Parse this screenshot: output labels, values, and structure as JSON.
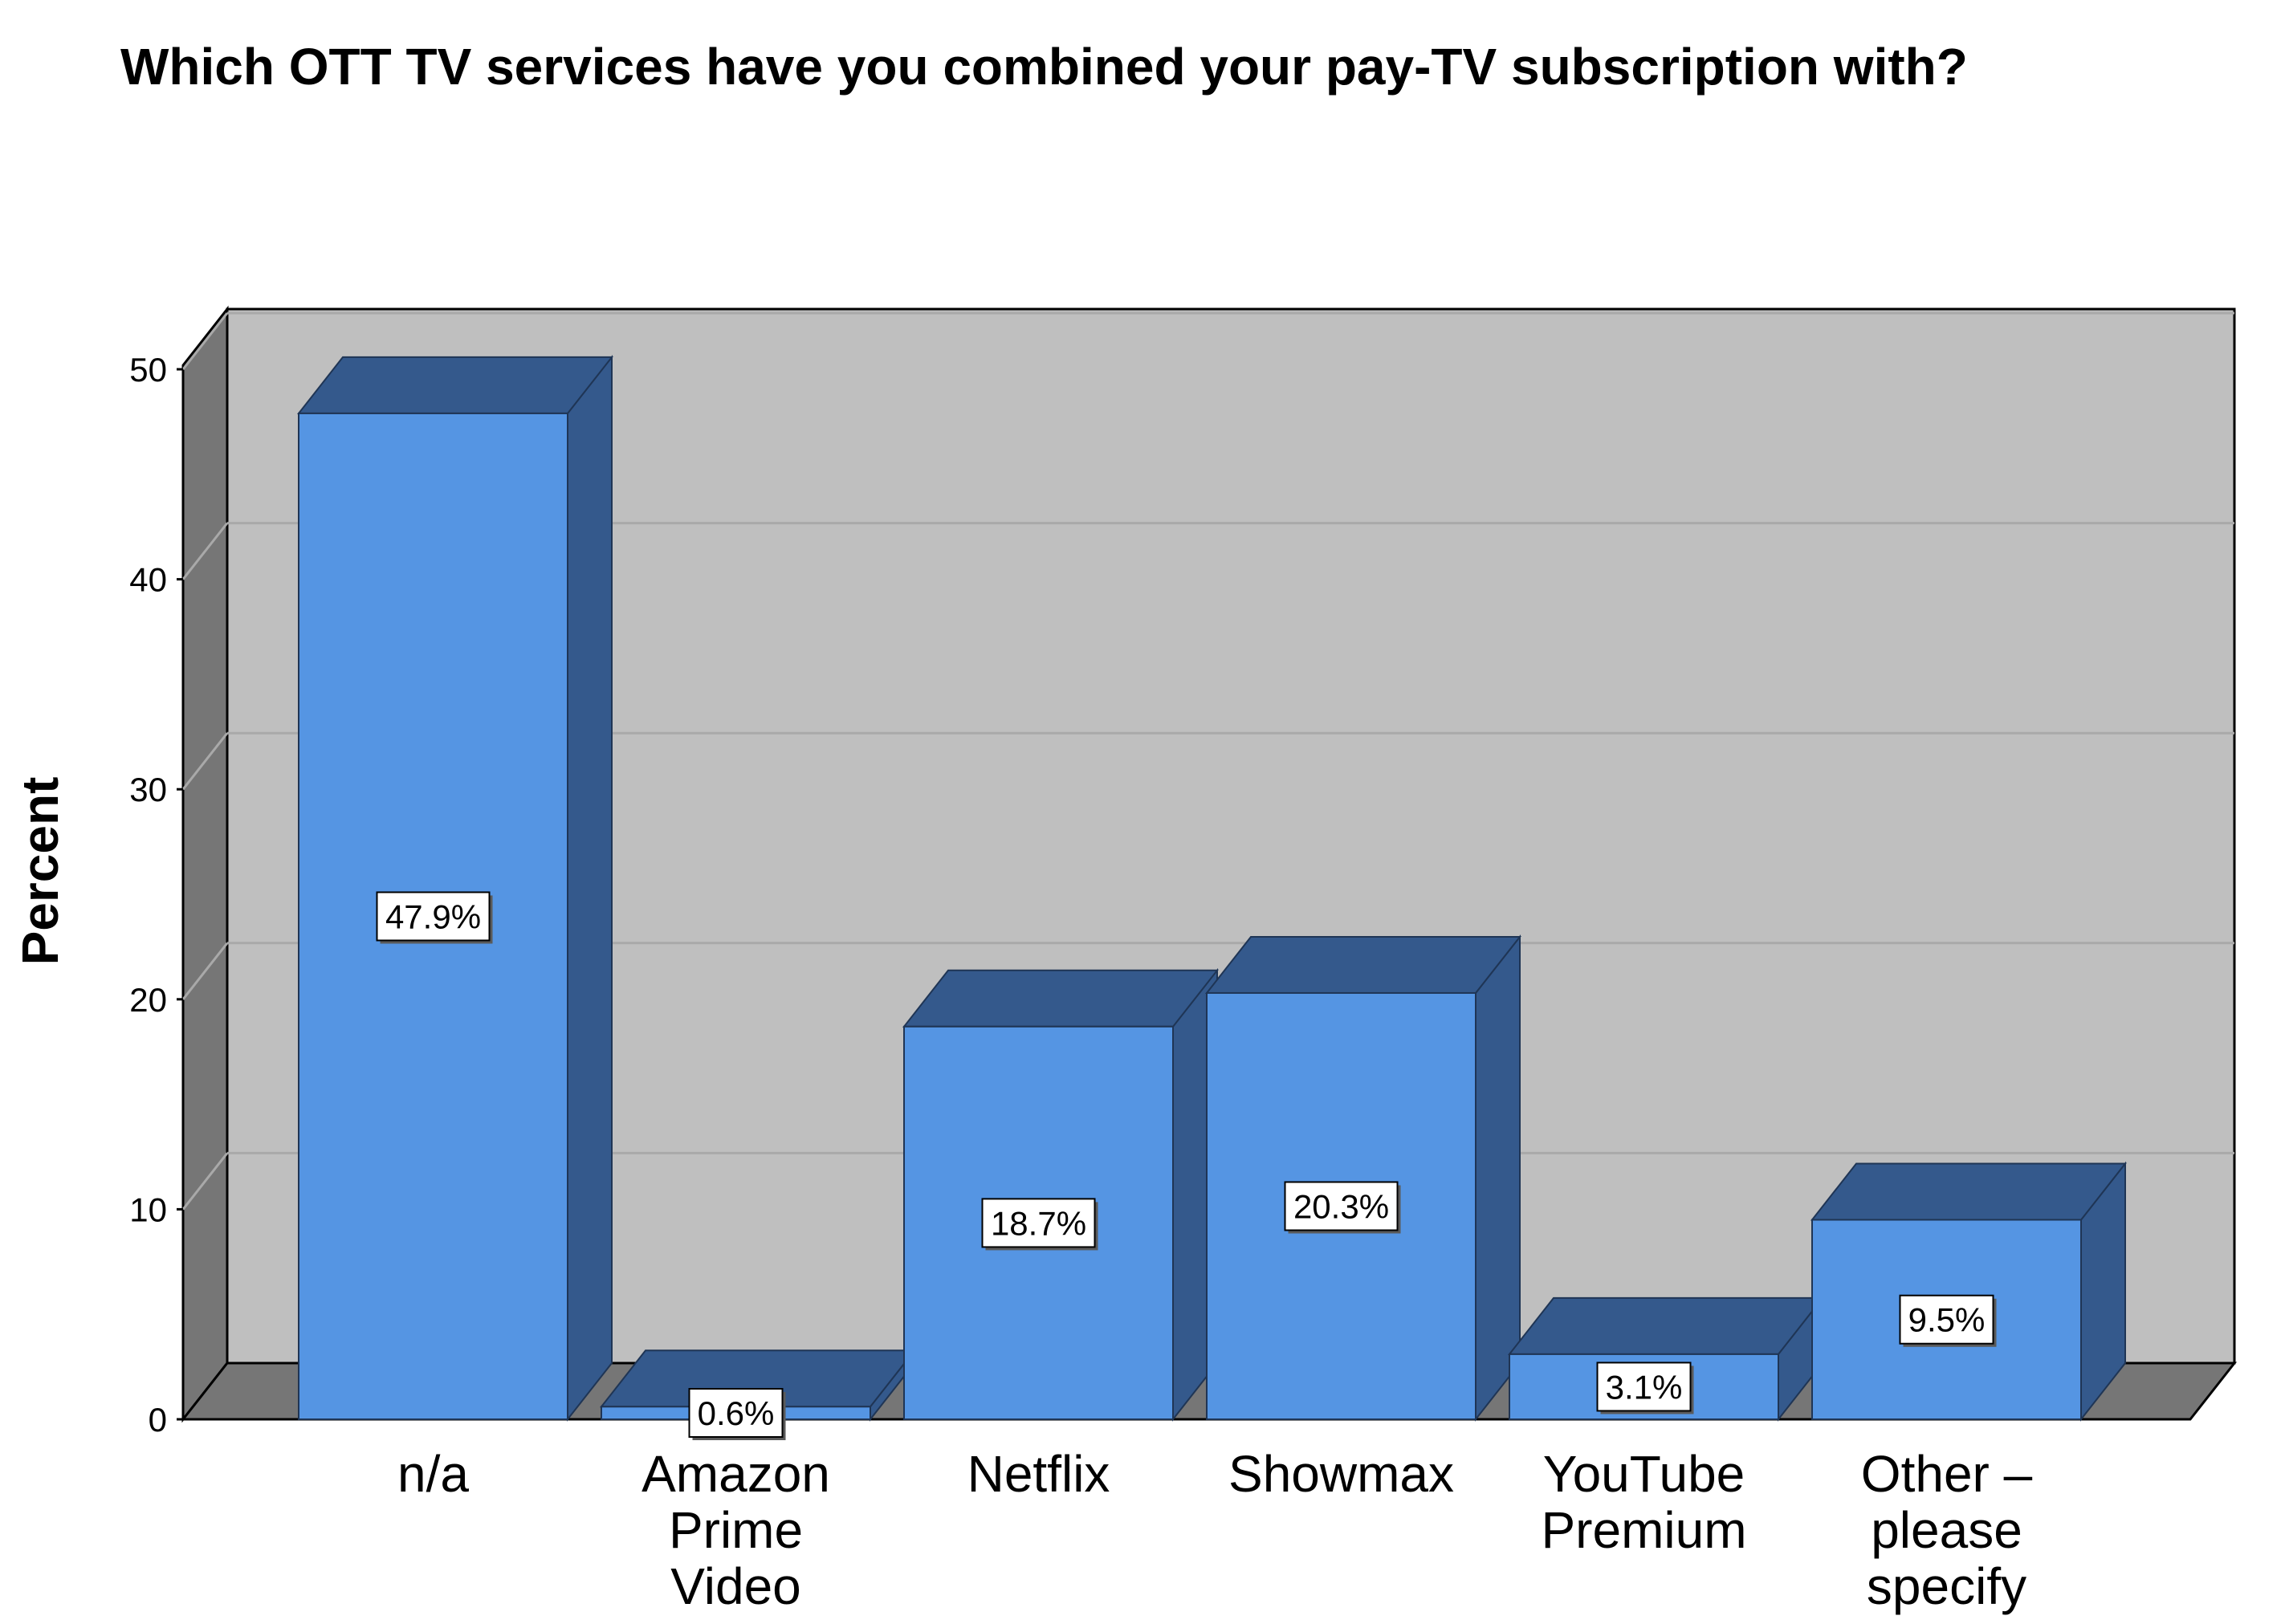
{
  "chart_data": {
    "type": "bar",
    "title": "Which OTT TV services have you combined your pay-TV subscription with?",
    "ylabel": "Percent",
    "xlabel": "",
    "ylim": [
      0,
      50
    ],
    "yticks": [
      0,
      10,
      20,
      30,
      40,
      50
    ],
    "grid": true,
    "categories": [
      [
        "n/a"
      ],
      [
        "Amazon",
        "Prime",
        "Video"
      ],
      [
        "Netflix"
      ],
      [
        "Showmax"
      ],
      [
        "YouTube",
        "Premium"
      ],
      [
        "Other –",
        "please",
        "specify"
      ]
    ],
    "values": [
      47.9,
      0.6,
      18.7,
      20.3,
      3.1,
      9.5
    ],
    "data_labels": [
      "47.9%",
      "0.6%",
      "18.7%",
      "20.3%",
      "3.1%",
      "9.5%"
    ],
    "colors": {
      "bar_front": "#5595e3",
      "bar_side": "#34598c",
      "plot_back": "#bfbfbf",
      "plot_floor": "#767676",
      "plot_wall": "#767676"
    }
  }
}
